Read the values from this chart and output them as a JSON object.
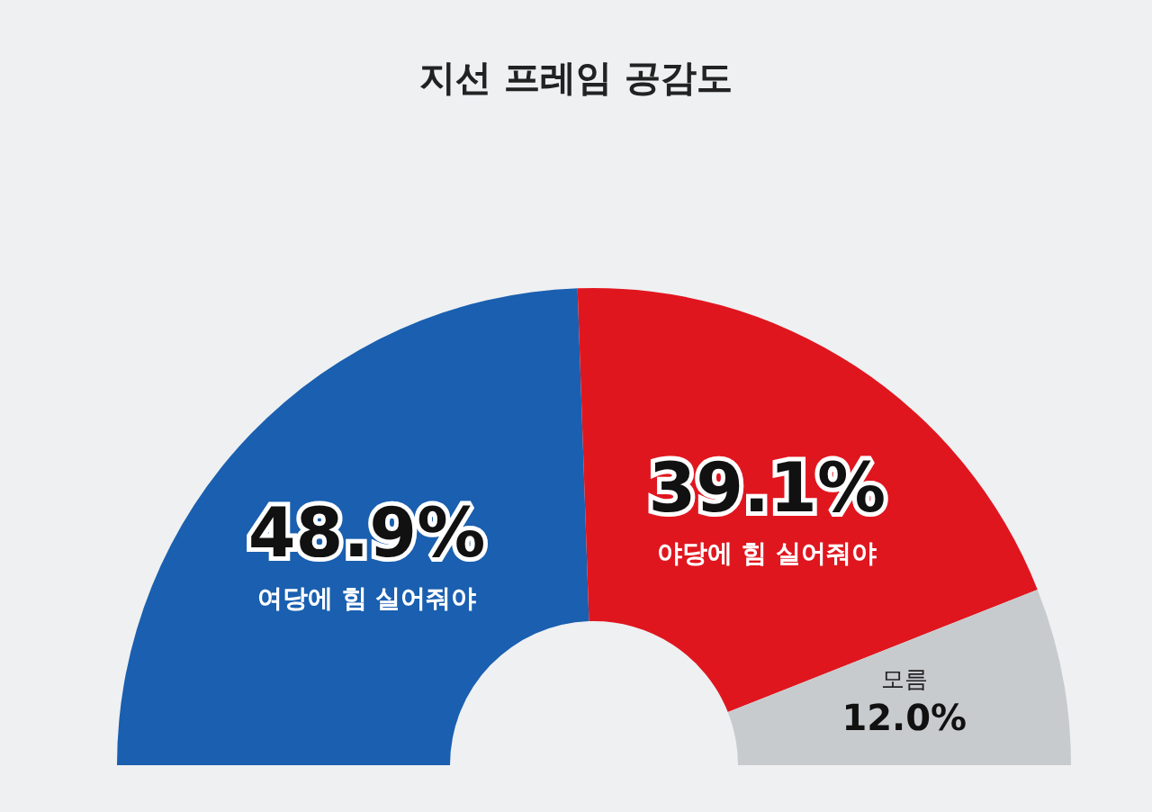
{
  "chart_data": {
    "type": "donut",
    "title": "지선 프레임 공감도",
    "categories": [
      "여당에 힘 실어줘야",
      "야당에 힘 실어줘야",
      "모름"
    ],
    "values": [
      48.9,
      39.1,
      12.0
    ],
    "value_labels": [
      "48.9%",
      "39.1%",
      "12.0%"
    ],
    "colors": [
      "#1a5fb0",
      "#e0161f",
      "#c8cbce"
    ],
    "legend": false
  }
}
